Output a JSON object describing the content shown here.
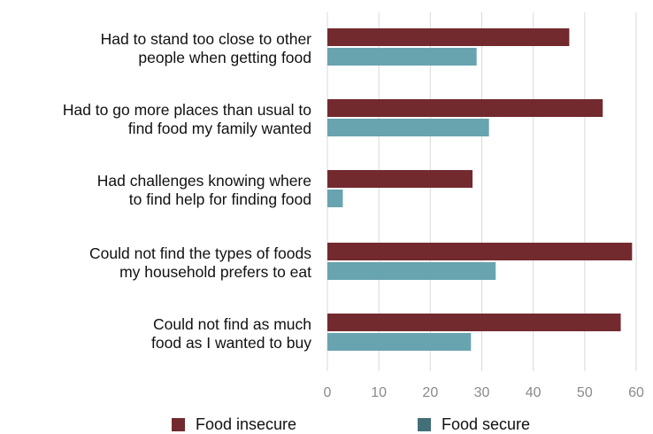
{
  "chart_data": {
    "type": "bar",
    "orientation": "horizontal",
    "categories": [
      [
        "Had to stand too close to other",
        "people when getting food"
      ],
      [
        "Had to go more places than usual to",
        "find food my family wanted"
      ],
      [
        "Had challenges knowing where",
        "to find help for finding food"
      ],
      [
        "Could not find the types of foods",
        "my household prefers to eat"
      ],
      [
        "Could not find as much",
        "food as I wanted to buy"
      ]
    ],
    "series": [
      {
        "name": "Food insecure",
        "color": "#722a2f",
        "values": [
          47,
          53.5,
          28.2,
          59.2,
          57
        ]
      },
      {
        "name": "Food secure",
        "color": "#68a4b0",
        "values": [
          29,
          31.4,
          3,
          32.7,
          27.9
        ]
      }
    ],
    "xlim": [
      0,
      60
    ],
    "xticks": [
      "0",
      "10",
      "20",
      "30",
      "40",
      "50",
      "60"
    ],
    "xtick_values": [
      0,
      10,
      20,
      30,
      40,
      50,
      60
    ],
    "grid": true,
    "legend_position": "bottom",
    "legend": [
      {
        "label": "Food insecure",
        "color": "#722a2f"
      },
      {
        "label": "Food secure",
        "color": "#426f78"
      }
    ],
    "title": "",
    "xlabel": "",
    "ylabel": ""
  }
}
